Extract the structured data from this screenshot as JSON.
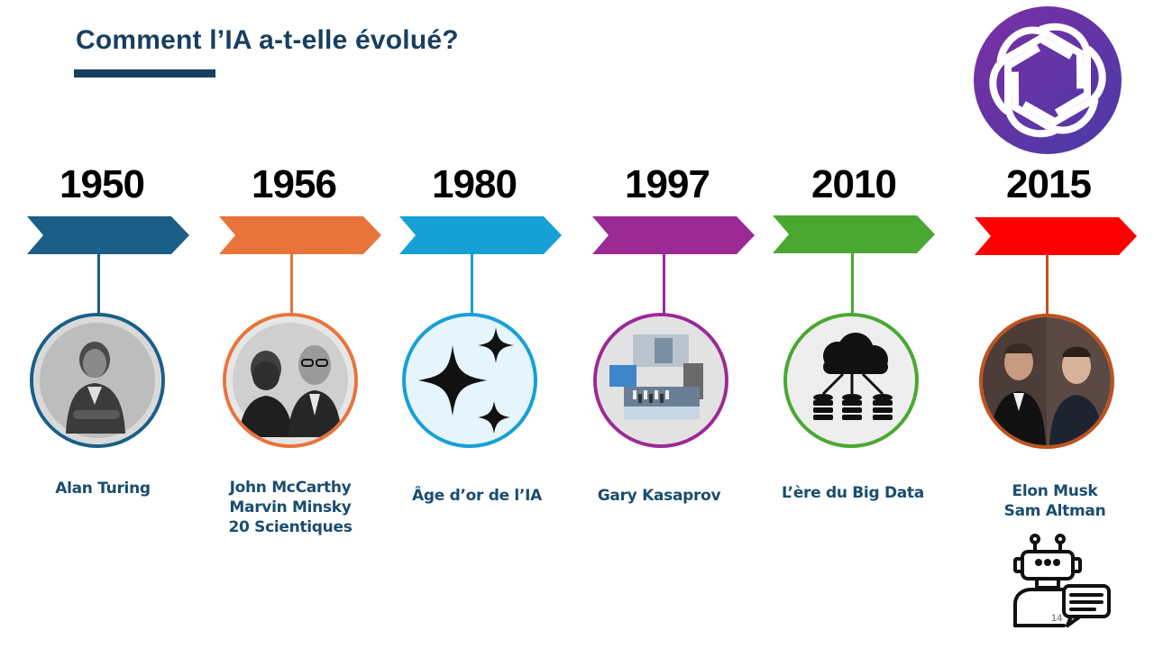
{
  "slide": {
    "title": "Comment l’IA a-t-elle évolué?",
    "page_number": "14"
  },
  "colors": {
    "title": "#173f5f",
    "logo_bg": "#6b2fa8",
    "label": "#1a4d70"
  },
  "timeline": [
    {
      "year": "1950",
      "color": "#1b5f86",
      "icon": "alan-turing-photo",
      "lines": [
        "Alan Turing"
      ]
    },
    {
      "year": "1956",
      "color": "#e8743b",
      "icon": "mccarthy-minsky-photo",
      "lines": [
        "John McCarthy",
        "Marvin Minsky",
        "20 Scientiques"
      ]
    },
    {
      "year": "1980",
      "color": "#16a0d6",
      "icon": "sparkles-icon",
      "lines": [
        "Âge d’or de l’IA"
      ]
    },
    {
      "year": "1997",
      "color": "#9b2a95",
      "icon": "kasparov-chess-photo",
      "lines": [
        "Gary Kasaprov"
      ]
    },
    {
      "year": "2010",
      "color": "#4aa832",
      "icon": "cloud-database-icon",
      "lines": [
        "L’ère du Big Data"
      ]
    },
    {
      "year": "2015",
      "color": "#ff0000",
      "icon": "musk-altman-photo",
      "lines": [
        "Elon Musk",
        "Sam Altman"
      ]
    }
  ]
}
